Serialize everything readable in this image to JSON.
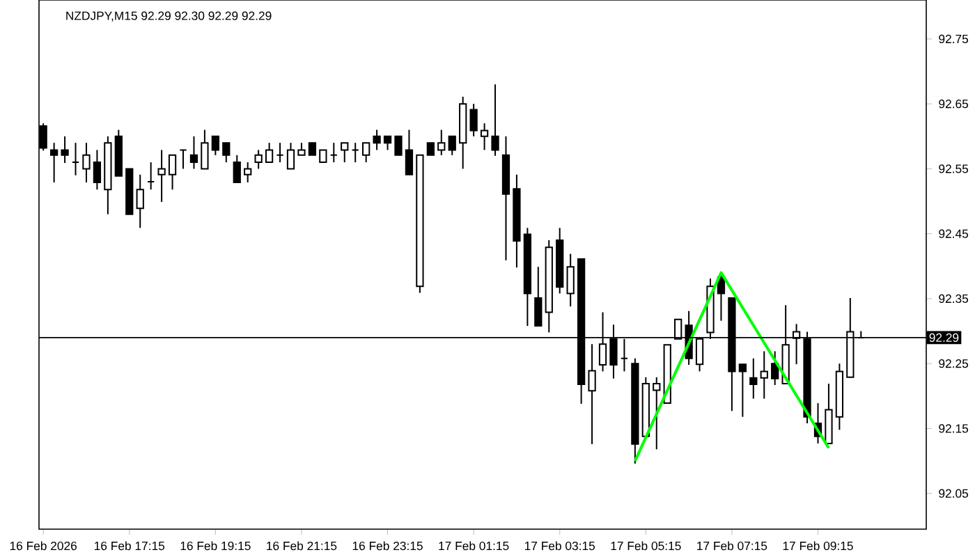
{
  "chart_data": {
    "type": "candlestick",
    "title": "NZDJPY,M15  92.29 92.30 92.29 92.29",
    "color": "#000000",
    "x": [
      "2026-02-16T15:15",
      "2026-02-16T15:30",
      "2026-02-16T15:45",
      "2026-02-16T16:00",
      "2026-02-16T16:15",
      "2026-02-16T16:30",
      "2026-02-16T16:45",
      "2026-02-16T17:00",
      "2026-02-16T17:15",
      "2026-02-16T17:30",
      "2026-02-16T17:45",
      "2026-02-16T18:00",
      "2026-02-16T18:15",
      "2026-02-16T18:30",
      "2026-02-16T18:45",
      "2026-02-16T19:00",
      "2026-02-16T19:15",
      "2026-02-16T19:30",
      "2026-02-16T19:45",
      "2026-02-16T20:00",
      "2026-02-16T20:15",
      "2026-02-16T20:30",
      "2026-02-16T20:45",
      "2026-02-16T21:00",
      "2026-02-16T21:15",
      "2026-02-16T21:30",
      "2026-02-16T21:45",
      "2026-02-16T22:00",
      "2026-02-16T22:15",
      "2026-02-16T22:30",
      "2026-02-16T22:45",
      "2026-02-16T23:00",
      "2026-02-16T23:15",
      "2026-02-16T23:30",
      "2026-02-16T23:45",
      "2026-02-17T00:00",
      "2026-02-17T00:15",
      "2026-02-17T00:30",
      "2026-02-17T00:45",
      "2026-02-17T01:00",
      "2026-02-17T01:15",
      "2026-02-17T01:30",
      "2026-02-17T01:45",
      "2026-02-17T02:00",
      "2026-02-17T02:15",
      "2026-02-17T02:30",
      "2026-02-17T02:45",
      "2026-02-17T03:00",
      "2026-02-17T03:15",
      "2026-02-17T03:30",
      "2026-02-17T03:45",
      "2026-02-17T04:00",
      "2026-02-17T04:15",
      "2026-02-17T04:30",
      "2026-02-17T04:45",
      "2026-02-17T05:00",
      "2026-02-17T05:15",
      "2026-02-17T05:30",
      "2026-02-17T05:45",
      "2026-02-17T06:00",
      "2026-02-17T06:15",
      "2026-02-17T06:30",
      "2026-02-17T06:45",
      "2026-02-17T07:00",
      "2026-02-17T07:15",
      "2026-02-17T07:30",
      "2026-02-17T07:45",
      "2026-02-17T08:00",
      "2026-02-17T08:15",
      "2026-02-17T08:30",
      "2026-02-17T08:45",
      "2026-02-17T09:00",
      "2026-02-17T09:15",
      "2026-02-17T09:30",
      "2026-02-17T09:45",
      "2026-02-17T10:00",
      "2026-02-17T10:15"
    ],
    "ohlc": [
      [
        92.616,
        92.62,
        92.578,
        92.582
      ],
      [
        92.579,
        92.59,
        92.529,
        92.571
      ],
      [
        92.579,
        92.6,
        92.559,
        92.571
      ],
      [
        92.56,
        92.59,
        92.54,
        92.56
      ],
      [
        92.55,
        92.59,
        92.529,
        92.571
      ],
      [
        92.56,
        92.579,
        92.518,
        92.529
      ],
      [
        92.518,
        92.6,
        92.48,
        92.59
      ],
      [
        92.6,
        92.61,
        92.539,
        92.539
      ],
      [
        92.55,
        92.55,
        92.48,
        92.48
      ],
      [
        92.489,
        92.541,
        92.459,
        92.518
      ],
      [
        92.53,
        92.56,
        92.518,
        92.53
      ],
      [
        92.541,
        92.579,
        92.499,
        92.55
      ],
      [
        92.541,
        92.571,
        92.518,
        92.571
      ],
      [
        92.579,
        92.579,
        92.55,
        92.579
      ],
      [
        92.571,
        92.6,
        92.55,
        92.56
      ],
      [
        92.55,
        92.61,
        92.55,
        92.59
      ],
      [
        92.6,
        92.6,
        92.571,
        92.579
      ],
      [
        92.59,
        92.59,
        92.56,
        92.571
      ],
      [
        92.56,
        92.571,
        92.529,
        92.529
      ],
      [
        92.541,
        92.56,
        92.529,
        92.55
      ],
      [
        92.56,
        92.579,
        92.55,
        92.571
      ],
      [
        92.56,
        92.59,
        92.56,
        92.579
      ],
      [
        92.571,
        92.59,
        92.56,
        92.571
      ],
      [
        92.55,
        92.59,
        92.55,
        92.579
      ],
      [
        92.571,
        92.59,
        92.571,
        92.579
      ],
      [
        92.59,
        92.59,
        92.571,
        92.571
      ],
      [
        92.56,
        92.579,
        92.56,
        92.579
      ],
      [
        92.571,
        92.59,
        92.56,
        92.571
      ],
      [
        92.579,
        92.59,
        92.56,
        92.59
      ],
      [
        92.579,
        92.59,
        92.56,
        92.579
      ],
      [
        92.571,
        92.59,
        92.56,
        92.59
      ],
      [
        92.6,
        92.61,
        92.579,
        92.59
      ],
      [
        92.6,
        92.6,
        92.579,
        92.59
      ],
      [
        92.6,
        92.6,
        92.571,
        92.571
      ],
      [
        92.579,
        92.61,
        92.541,
        92.541
      ],
      [
        92.369,
        92.571,
        92.359,
        92.571
      ],
      [
        92.59,
        92.59,
        92.571,
        92.571
      ],
      [
        92.579,
        92.61,
        92.571,
        92.59
      ],
      [
        92.6,
        92.6,
        92.571,
        92.579
      ],
      [
        92.59,
        92.661,
        92.55,
        92.65
      ],
      [
        92.641,
        92.65,
        92.6,
        92.609
      ],
      [
        92.6,
        92.62,
        92.579,
        92.609
      ],
      [
        92.6,
        92.68,
        92.57,
        92.579
      ],
      [
        92.571,
        92.6,
        92.409,
        92.511
      ],
      [
        92.519,
        92.541,
        92.398,
        92.439
      ],
      [
        92.449,
        92.459,
        92.308,
        92.358
      ],
      [
        92.351,
        92.399,
        92.308,
        92.308
      ],
      [
        92.329,
        92.44,
        92.298,
        92.429
      ],
      [
        92.44,
        92.459,
        92.358,
        92.368
      ],
      [
        92.358,
        92.419,
        92.338,
        92.399
      ],
      [
        92.411,
        92.411,
        92.188,
        92.218
      ],
      [
        92.208,
        92.28,
        92.126,
        92.239
      ],
      [
        92.248,
        92.329,
        92.238,
        92.28
      ],
      [
        92.288,
        92.31,
        92.227,
        92.248
      ],
      [
        92.258,
        92.288,
        92.238,
        92.258
      ],
      [
        92.25,
        92.258,
        92.096,
        92.126
      ],
      [
        92.138,
        92.229,
        92.138,
        92.219
      ],
      [
        92.209,
        92.229,
        92.118,
        92.219
      ],
      [
        92.189,
        92.279,
        92.189,
        92.279
      ],
      [
        92.288,
        92.318,
        92.288,
        92.318
      ],
      [
        92.309,
        92.331,
        92.248,
        92.258
      ],
      [
        92.249,
        92.288,
        92.238,
        92.288
      ],
      [
        92.298,
        92.381,
        92.288,
        92.369
      ],
      [
        92.383,
        92.389,
        92.316,
        92.358
      ],
      [
        92.351,
        92.351,
        92.177,
        92.238
      ],
      [
        92.249,
        92.249,
        92.168,
        92.238
      ],
      [
        92.228,
        92.258,
        92.196,
        92.218
      ],
      [
        92.228,
        92.269,
        92.196,
        92.238
      ],
      [
        92.25,
        92.269,
        92.217,
        92.227
      ],
      [
        92.219,
        92.34,
        92.219,
        92.279
      ],
      [
        92.289,
        92.311,
        92.249,
        92.299
      ],
      [
        92.288,
        92.299,
        92.158,
        92.168
      ],
      [
        92.158,
        92.189,
        92.127,
        92.138
      ],
      [
        92.127,
        92.219,
        92.127,
        92.179
      ],
      [
        92.168,
        92.25,
        92.148,
        92.238
      ],
      [
        92.229,
        92.351,
        92.229,
        92.299
      ],
      [
        92.29,
        92.3,
        92.29,
        92.29
      ]
    ],
    "series": [
      {
        "type": "line",
        "color": "#00ff00",
        "x": [
          "2026-02-17T05:00",
          "2026-02-17T07:00",
          "2026-02-17T09:30"
        ],
        "values": [
          92.1,
          92.39,
          92.12
        ]
      }
    ],
    "ref_lines": [
      {
        "axis": "y",
        "value": 92.29,
        "label": "92.29",
        "color": "#000000"
      }
    ],
    "xlim": [
      "2026-02-16T15:09",
      "2026-02-17T11:46"
    ],
    "xticks": [
      {
        "value": "2026-02-16T15:15",
        "label": "16 Feb 2026"
      },
      {
        "value": "2026-02-16T17:15",
        "label": "16 Feb 17:15"
      },
      {
        "value": "2026-02-16T19:15",
        "label": "16 Feb 19:15"
      },
      {
        "value": "2026-02-16T21:15",
        "label": "16 Feb 21:15"
      },
      {
        "value": "2026-02-16T23:15",
        "label": "16 Feb 23:15"
      },
      {
        "value": "2026-02-17T01:15",
        "label": "17 Feb 01:15"
      },
      {
        "value": "2026-02-17T03:15",
        "label": "17 Feb 03:15"
      },
      {
        "value": "2026-02-17T05:15",
        "label": "17 Feb 05:15"
      },
      {
        "value": "2026-02-17T07:15",
        "label": "17 Feb 07:15"
      },
      {
        "value": "2026-02-17T09:15",
        "label": "17 Feb 09:15"
      }
    ],
    "ylim": [
      91.995,
      92.81
    ],
    "yticks": [
      92.05,
      92.15,
      92.25,
      92.35,
      92.45,
      92.55,
      92.65,
      92.75
    ]
  }
}
